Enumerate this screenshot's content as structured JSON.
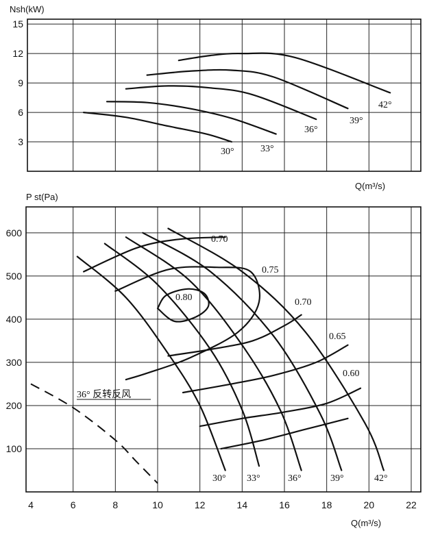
{
  "chart_data": [
    {
      "type": "line",
      "id": "power",
      "title": "",
      "ylabel": "Nsh(kW)",
      "xlabel": "Q(m³/s)",
      "xlim": [
        4,
        22
      ],
      "ylim": [
        0,
        15.5
      ],
      "x_ticks": [],
      "y_ticks": [
        3,
        6,
        9,
        12,
        15
      ],
      "grid": true,
      "series": [
        {
          "name": "30°",
          "points": [
            [
              6.5,
              6.0
            ],
            [
              8.5,
              5.5
            ],
            [
              10.5,
              4.6
            ],
            [
              12.3,
              3.8
            ],
            [
              13.5,
              3.0
            ]
          ]
        },
        {
          "name": "33°",
          "points": [
            [
              7.6,
              7.1
            ],
            [
              9.5,
              7.0
            ],
            [
              11.5,
              6.4
            ],
            [
              13.5,
              5.4
            ],
            [
              15.6,
              3.8
            ]
          ]
        },
        {
          "name": "36°",
          "points": [
            [
              8.5,
              8.4
            ],
            [
              10.5,
              8.7
            ],
            [
              12.5,
              8.5
            ],
            [
              14.5,
              7.8
            ],
            [
              17.5,
              5.3
            ]
          ]
        },
        {
          "name": "39°",
          "points": [
            [
              9.5,
              9.8
            ],
            [
              11.5,
              10.2
            ],
            [
              13.5,
              10.3
            ],
            [
              15.5,
              9.6
            ],
            [
              19.0,
              6.4
            ]
          ]
        },
        {
          "name": "42°",
          "points": [
            [
              11.0,
              11.3
            ],
            [
              12.5,
              11.8
            ],
            [
              14.0,
              12.0
            ],
            [
              16.5,
              11.6
            ],
            [
              21.0,
              8.0
            ]
          ]
        }
      ]
    },
    {
      "type": "line",
      "id": "pressure",
      "title": "",
      "ylabel": "P st(Pa)",
      "xlabel": "Q(m³/s)",
      "xlim": [
        4,
        22
      ],
      "ylim": [
        0,
        660
      ],
      "x_ticks": [
        4,
        6,
        8,
        10,
        12,
        14,
        16,
        18,
        20,
        22
      ],
      "y_ticks": [
        100,
        200,
        300,
        400,
        500,
        600
      ],
      "grid": true,
      "series": [
        {
          "name": "30°",
          "points": [
            [
              6.2,
              545
            ],
            [
              8.5,
              450
            ],
            [
              10.5,
              320
            ],
            [
              12.0,
              200
            ],
            [
              13.2,
              50
            ]
          ]
        },
        {
          "name": "33°",
          "points": [
            [
              7.5,
              575
            ],
            [
              10.0,
              480
            ],
            [
              12.5,
              330
            ],
            [
              14.0,
              190
            ],
            [
              14.8,
              60
            ]
          ]
        },
        {
          "name": "36°",
          "points": [
            [
              8.5,
              590
            ],
            [
              11.5,
              490
            ],
            [
              14.0,
              340
            ],
            [
              15.8,
              190
            ],
            [
              16.8,
              50
            ]
          ]
        },
        {
          "name": "39°",
          "points": [
            [
              9.3,
              600
            ],
            [
              12.5,
              510
            ],
            [
              15.5,
              360
            ],
            [
              17.7,
              180
            ],
            [
              18.7,
              50
            ]
          ]
        },
        {
          "name": "42°",
          "points": [
            [
              10.5,
              610
            ],
            [
              14.0,
              510
            ],
            [
              17.0,
              370
            ],
            [
              19.8,
              160
            ],
            [
              20.7,
              50
            ]
          ]
        },
        {
          "name": "0.70",
          "points": [
            [
              6.5,
              510
            ],
            [
              9.0,
              565
            ],
            [
              11.0,
              585
            ],
            [
              13.2,
              590
            ]
          ]
        },
        {
          "name": "0.75",
          "points": [
            [
              8.0,
              465
            ],
            [
              10.5,
              515
            ],
            [
              12.8,
              520
            ],
            [
              14.4,
              510
            ],
            [
              14.8,
              440
            ],
            [
              13.8,
              370
            ],
            [
              11.5,
              310
            ],
            [
              9.5,
              275
            ],
            [
              8.5,
              260
            ]
          ]
        },
        {
          "name": "0.80",
          "points": [
            [
              10.0,
              425
            ],
            [
              10.4,
              455
            ],
            [
              11.4,
              470
            ],
            [
              12.2,
              460
            ],
            [
              12.4,
              430
            ],
            [
              11.8,
              405
            ],
            [
              10.8,
              395
            ],
            [
              10.0,
              425
            ]
          ]
        },
        {
          "name": "0.70 ",
          "points": [
            [
              10.5,
              315
            ],
            [
              12.5,
              330
            ],
            [
              14.5,
              350
            ],
            [
              16.0,
              385
            ],
            [
              16.8,
              410
            ]
          ]
        },
        {
          "name": "0.65",
          "points": [
            [
              11.2,
              230
            ],
            [
              13.5,
              250
            ],
            [
              15.5,
              270
            ],
            [
              17.5,
              300
            ],
            [
              19.0,
              340
            ]
          ]
        },
        {
          "name": "0.60",
          "points": [
            [
              12.0,
              152
            ],
            [
              14.0,
              170
            ],
            [
              16.0,
              185
            ],
            [
              18.0,
              205
            ],
            [
              19.6,
              240
            ]
          ]
        },
        {
          "name": "0.60 base",
          "points": [
            [
              13.0,
              100
            ],
            [
              15.0,
              120
            ],
            [
              17.0,
              145
            ],
            [
              19.0,
              170
            ]
          ]
        }
      ],
      "reverse_curve": {
        "label": "36° 反转反风",
        "points": [
          [
            4,
            250
          ],
          [
            6,
            195
          ],
          [
            8,
            120
          ],
          [
            9,
            70
          ],
          [
            10,
            20
          ]
        ]
      }
    }
  ],
  "labels": {
    "power_angles": [
      "30°",
      "33°",
      "36°",
      "39°",
      "42°"
    ],
    "pressure_angles": [
      "30°",
      "33°",
      "36°",
      "39°",
      "42°"
    ],
    "efficiency": [
      "0.70",
      "0.75",
      "0.80",
      "0.70",
      "0.65",
      "0.60"
    ]
  }
}
